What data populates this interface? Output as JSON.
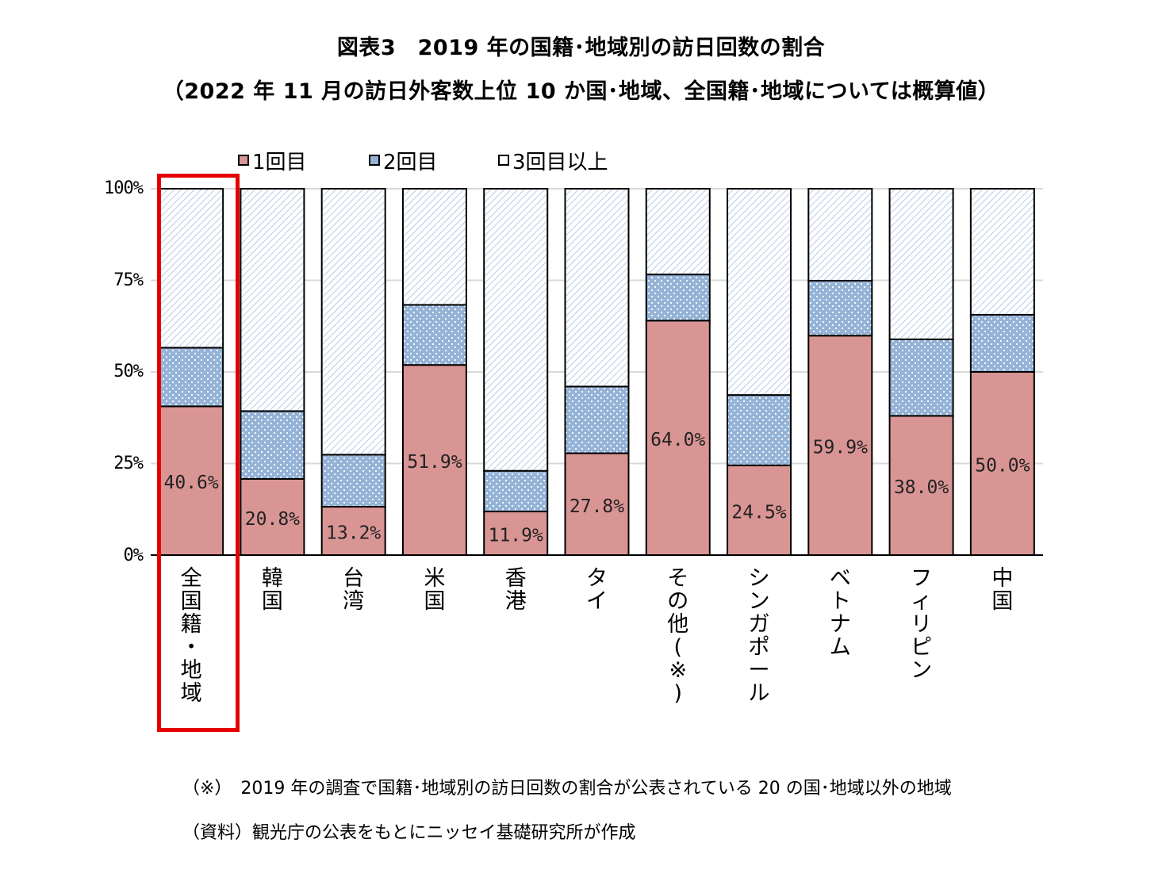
{
  "title": "図表3　2019 年の国籍･地域別の訪日回数の割合",
  "subtitle": "（2022 年 11 月の訪日外客数上位 10 か国･地域、全国籍･地域については概算値）",
  "notes": {
    "note": "（※）　2019 年の調査で国籍･地域別の訪日回数の割合が公表されている 20 の国･地域以外の地域",
    "source": "（資料）観光庁の公表をもとにニッセイ基礎研究所が作成"
  },
  "colors": {
    "first": "#d99594",
    "second": "#95b3d7",
    "third": "#dce6f1",
    "highlight": "#e50000"
  },
  "chart_data": {
    "type": "bar",
    "stacked": true,
    "normalized": true,
    "categories": [
      "全国籍・地域",
      "韓国",
      "台湾",
      "米国",
      "香港",
      "タイ",
      "その他(※)",
      "シンガポール",
      "ベトナム",
      "フィリピン",
      "中国"
    ],
    "series": [
      {
        "name": "1回目",
        "values": [
          40.6,
          20.8,
          13.2,
          51.9,
          11.9,
          27.8,
          64.0,
          24.5,
          59.9,
          38.0,
          50.0
        ]
      },
      {
        "name": "2回目",
        "values": [
          16.0,
          18.5,
          14.2,
          16.4,
          11.1,
          18.2,
          12.6,
          19.2,
          15.0,
          20.9,
          15.6
        ]
      },
      {
        "name": "3回目以上",
        "values": [
          43.4,
          60.7,
          72.6,
          31.7,
          77.0,
          54.0,
          23.4,
          56.3,
          25.1,
          41.1,
          34.4
        ]
      }
    ],
    "data_labels": [
      "40.6%",
      "20.8%",
      "13.2%",
      "51.9%",
      "11.9%",
      "27.8%",
      "64.0%",
      "24.5%",
      "59.9%",
      "38.0%",
      "50.0%"
    ],
    "y_ticks": [
      "0%",
      "25%",
      "50%",
      "75%",
      "100%"
    ],
    "ylim": [
      0,
      100
    ],
    "legend": [
      "1回目",
      "2回目",
      "3回目以上"
    ],
    "legend_position": "top",
    "grid": true,
    "highlighted_category": "全国籍・地域"
  }
}
